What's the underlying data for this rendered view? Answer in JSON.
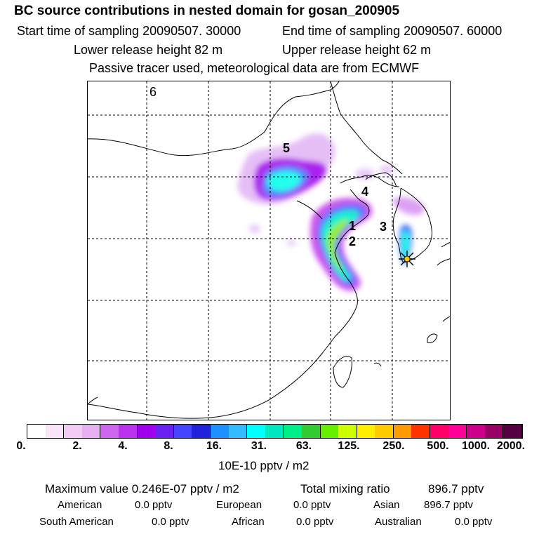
{
  "header": {
    "title": "BC  source contributions in nested domain for gosan_200905",
    "start_label": "Start time of sampling 20090507. 30000",
    "end_label": "End time of sampling 20090507. 60000",
    "lower_label": "Lower release height   82 m",
    "upper_label": "Upper release height   62 m",
    "tracer_note": "Passive tracer used, meteorological data are from ECMWF"
  },
  "map": {
    "region_labels": [
      "1",
      "2",
      "3",
      "4",
      "5",
      "6"
    ],
    "receptor_marker": "star-marker-icon"
  },
  "colorbar": {
    "tick_labels": [
      "0.",
      "2.",
      "4.",
      "8.",
      "16.",
      "31.",
      "63.",
      "125.",
      "250.",
      "500.",
      "1000.",
      "2000."
    ],
    "unit_label": "10E-10 pptv / m2",
    "colors": [
      "#ffffff",
      "#f8e6f8",
      "#f2ccf2",
      "#e8b0f2",
      "#cc66ee",
      "#bb33ee",
      "#a000ee",
      "#6a20f0",
      "#4444ff",
      "#2222dd",
      "#1e90ff",
      "#33bbff",
      "#00ffff",
      "#00e8c0",
      "#00ee88",
      "#33cc33",
      "#66ee00",
      "#ccff00",
      "#ffee00",
      "#ffcc00",
      "#ff9900",
      "#ff3300",
      "#ff0066",
      "#ff0099",
      "#cc0088",
      "#990066",
      "#550044"
    ]
  },
  "stats": {
    "max_label": "Maximum value  0.246E-07 pptv / m2",
    "total_label": "Total mixing ratio",
    "total_value": "896.7 pptv",
    "american_label": "American",
    "american_value": "0.0 pptv",
    "european_label": "European",
    "european_value": "0.0 pptv",
    "asian_label": "Asian",
    "asian_value": "896.7 pptv",
    "south_american_label": "South American",
    "south_american_value": "0.0 pptv",
    "african_label": "African",
    "african_value": "0.0 pptv",
    "australian_label": "Australian",
    "australian_value": "0.0 pptv"
  }
}
